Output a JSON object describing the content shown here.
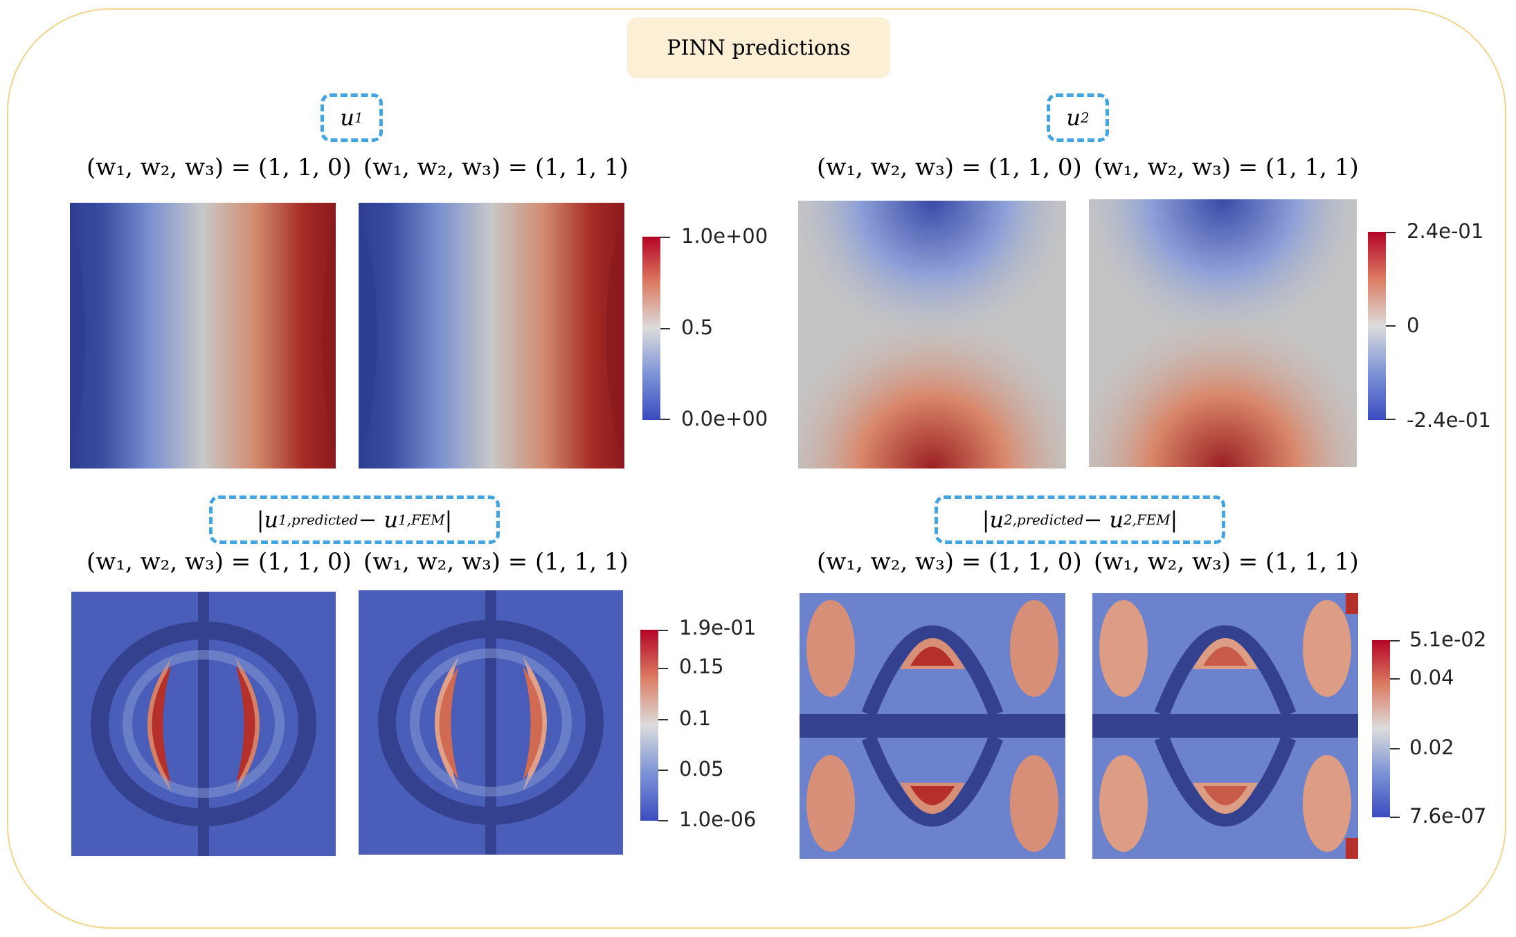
{
  "title": "PINN predictions",
  "weight_labels": {
    "case_a": "(w₁, w₂, w₃) = (1, 1, 0)",
    "case_b": "(w₁, w₂, w₃) = (1, 1, 1)"
  },
  "panels": {
    "u1": {
      "var": "u",
      "sub": "1"
    },
    "u2": {
      "var": "u",
      "sub": "2"
    },
    "err1": {
      "text": "|u",
      "sub1": "1,predicted",
      "mid": " − u",
      "sub2": "1,FEM",
      "end": "|"
    },
    "err2": {
      "text": "|u",
      "sub1": "2,predicted",
      "mid": " − u",
      "sub2": "2,FEM",
      "end": "|"
    }
  },
  "colorbars": {
    "u1": [
      "1.0e+00",
      "0.5",
      "0.0e+00"
    ],
    "u2": [
      "2.4e-01",
      "0",
      "-2.4e-01"
    ],
    "err1": [
      "1.9e-01",
      "0.15",
      "0.1",
      "0.05",
      "1.0e-06"
    ],
    "err2": [
      "5.1e-02",
      "0.04",
      "0.02",
      "7.6e-07"
    ]
  },
  "colors": {
    "frame": "#f2d58c",
    "title_bg": "#fbf0d5",
    "dash": "#42a4e0",
    "cmap_low": "#3b4cc0",
    "cmap_mid": "#dcdcdc",
    "cmap_high": "#b40426"
  }
}
